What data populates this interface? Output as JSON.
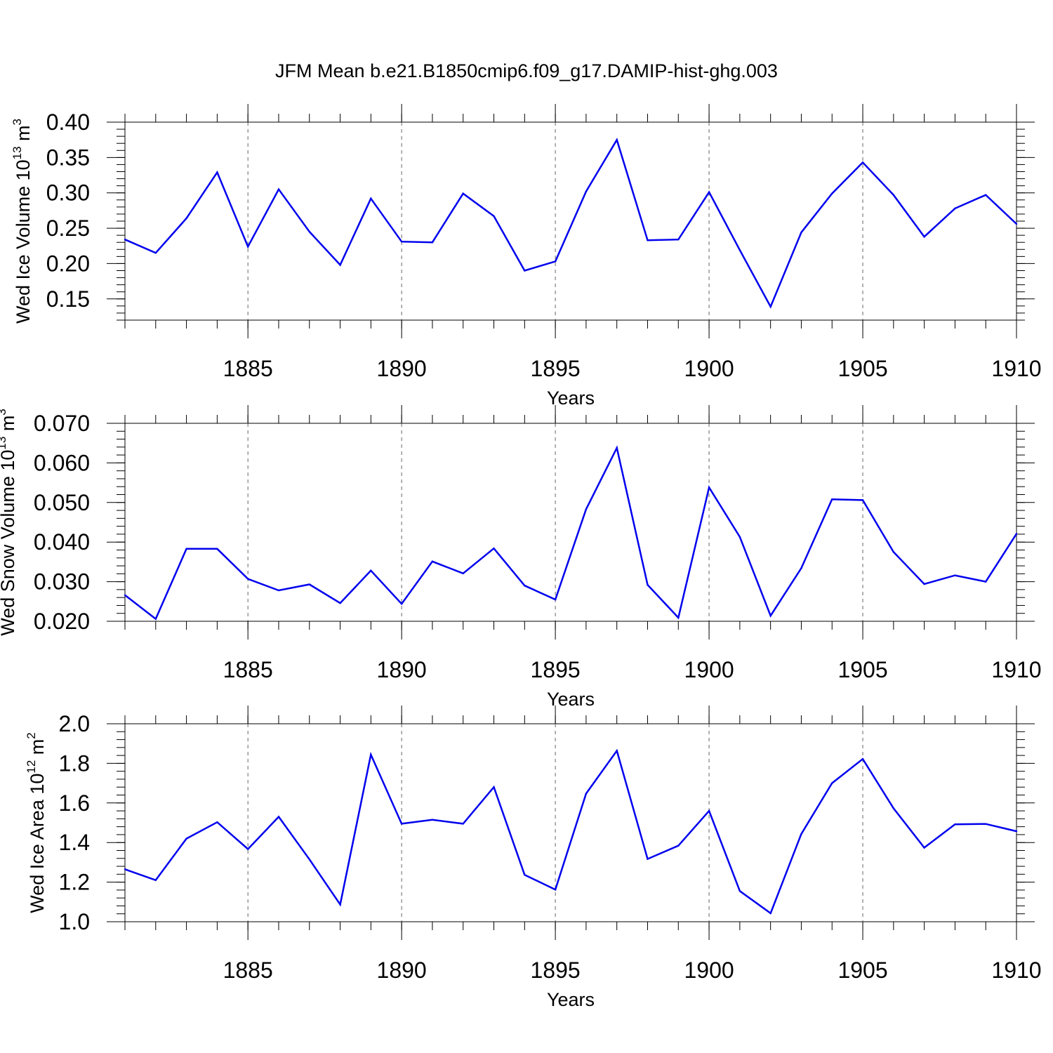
{
  "title": "JFM Mean b.e21.B1850cmip6.f09_g17.DAMIP-hist-ghg.003",
  "chart_data": [
    {
      "type": "line",
      "ylabel": {
        "prefix": "Wed Ice Volume 10",
        "exponent": "13",
        "unit": " m",
        "unit_exponent": "3"
      },
      "xlabel": "Years",
      "xlim": [
        1881,
        1910
      ],
      "ylim": [
        0.12,
        0.4
      ],
      "yticks": [
        "0.15",
        "0.20",
        "0.25",
        "0.30",
        "0.35",
        "0.40"
      ],
      "xticks": [
        "1885",
        "1890",
        "1895",
        "1900",
        "1905",
        "1910"
      ],
      "line_color": "#0000ee",
      "x": [
        1881,
        1882,
        1883,
        1884,
        1885,
        1886,
        1887,
        1888,
        1889,
        1890,
        1891,
        1892,
        1893,
        1894,
        1895,
        1896,
        1897,
        1898,
        1899,
        1900,
        1901,
        1902,
        1903,
        1904,
        1905,
        1906,
        1907,
        1908,
        1909,
        1910
      ],
      "values": [
        0.234,
        0.215,
        0.264,
        0.329,
        0.224,
        0.305,
        0.245,
        0.198,
        0.292,
        0.231,
        0.23,
        0.299,
        0.267,
        0.19,
        0.203,
        0.302,
        0.375,
        0.233,
        0.234,
        0.301,
        0.219,
        0.139,
        0.244,
        0.299,
        0.343,
        0.297,
        0.238,
        0.278,
        0.297,
        0.256
      ]
    },
    {
      "type": "line",
      "ylabel": {
        "prefix": "Wed Snow Volume 10",
        "exponent": "13",
        "unit": " m",
        "unit_exponent": "3"
      },
      "xlabel": "Years",
      "xlim": [
        1881,
        1910
      ],
      "ylim": [
        0.02,
        0.07
      ],
      "yticks": [
        "0.020",
        "0.030",
        "0.040",
        "0.050",
        "0.060",
        "0.070"
      ],
      "xticks": [
        "1885",
        "1890",
        "1895",
        "1900",
        "1905",
        "1910"
      ],
      "line_color": "#0000ee",
      "x": [
        1881,
        1882,
        1883,
        1884,
        1885,
        1886,
        1887,
        1888,
        1889,
        1890,
        1891,
        1892,
        1893,
        1894,
        1895,
        1896,
        1897,
        1898,
        1899,
        1900,
        1901,
        1902,
        1903,
        1904,
        1905,
        1906,
        1907,
        1908,
        1909,
        1910
      ],
      "values": [
        0.0266,
        0.0206,
        0.0383,
        0.0383,
        0.0307,
        0.0278,
        0.0293,
        0.0246,
        0.0328,
        0.0244,
        0.0351,
        0.0321,
        0.0384,
        0.029,
        0.0255,
        0.0483,
        0.0638,
        0.0292,
        0.0209,
        0.0538,
        0.0413,
        0.0214,
        0.0334,
        0.0508,
        0.0506,
        0.0375,
        0.0294,
        0.0316,
        0.03,
        0.0421
      ]
    },
    {
      "type": "line",
      "ylabel": {
        "prefix": "Wed Ice Area 10",
        "exponent": "12",
        "unit": " m",
        "unit_exponent": "2"
      },
      "xlabel": "Years",
      "xlim": [
        1881,
        1910
      ],
      "ylim": [
        1.0,
        2.0
      ],
      "yticks": [
        "1.0",
        "1.2",
        "1.4",
        "1.6",
        "1.8",
        "2.0"
      ],
      "xticks": [
        "1885",
        "1890",
        "1895",
        "1900",
        "1905",
        "1910"
      ],
      "line_color": "#0000ee",
      "x": [
        1881,
        1882,
        1883,
        1884,
        1885,
        1886,
        1887,
        1888,
        1889,
        1890,
        1891,
        1892,
        1893,
        1894,
        1895,
        1896,
        1897,
        1898,
        1899,
        1900,
        1901,
        1902,
        1903,
        1904,
        1905,
        1906,
        1907,
        1908,
        1909,
        1910
      ],
      "values": [
        1.265,
        1.21,
        1.42,
        1.503,
        1.367,
        1.53,
        1.315,
        1.087,
        1.844,
        1.495,
        1.515,
        1.495,
        1.68,
        1.237,
        1.162,
        1.647,
        1.864,
        1.317,
        1.384,
        1.56,
        1.155,
        1.043,
        1.443,
        1.7,
        1.822,
        1.573,
        1.374,
        1.492,
        1.494,
        1.457
      ]
    }
  ]
}
